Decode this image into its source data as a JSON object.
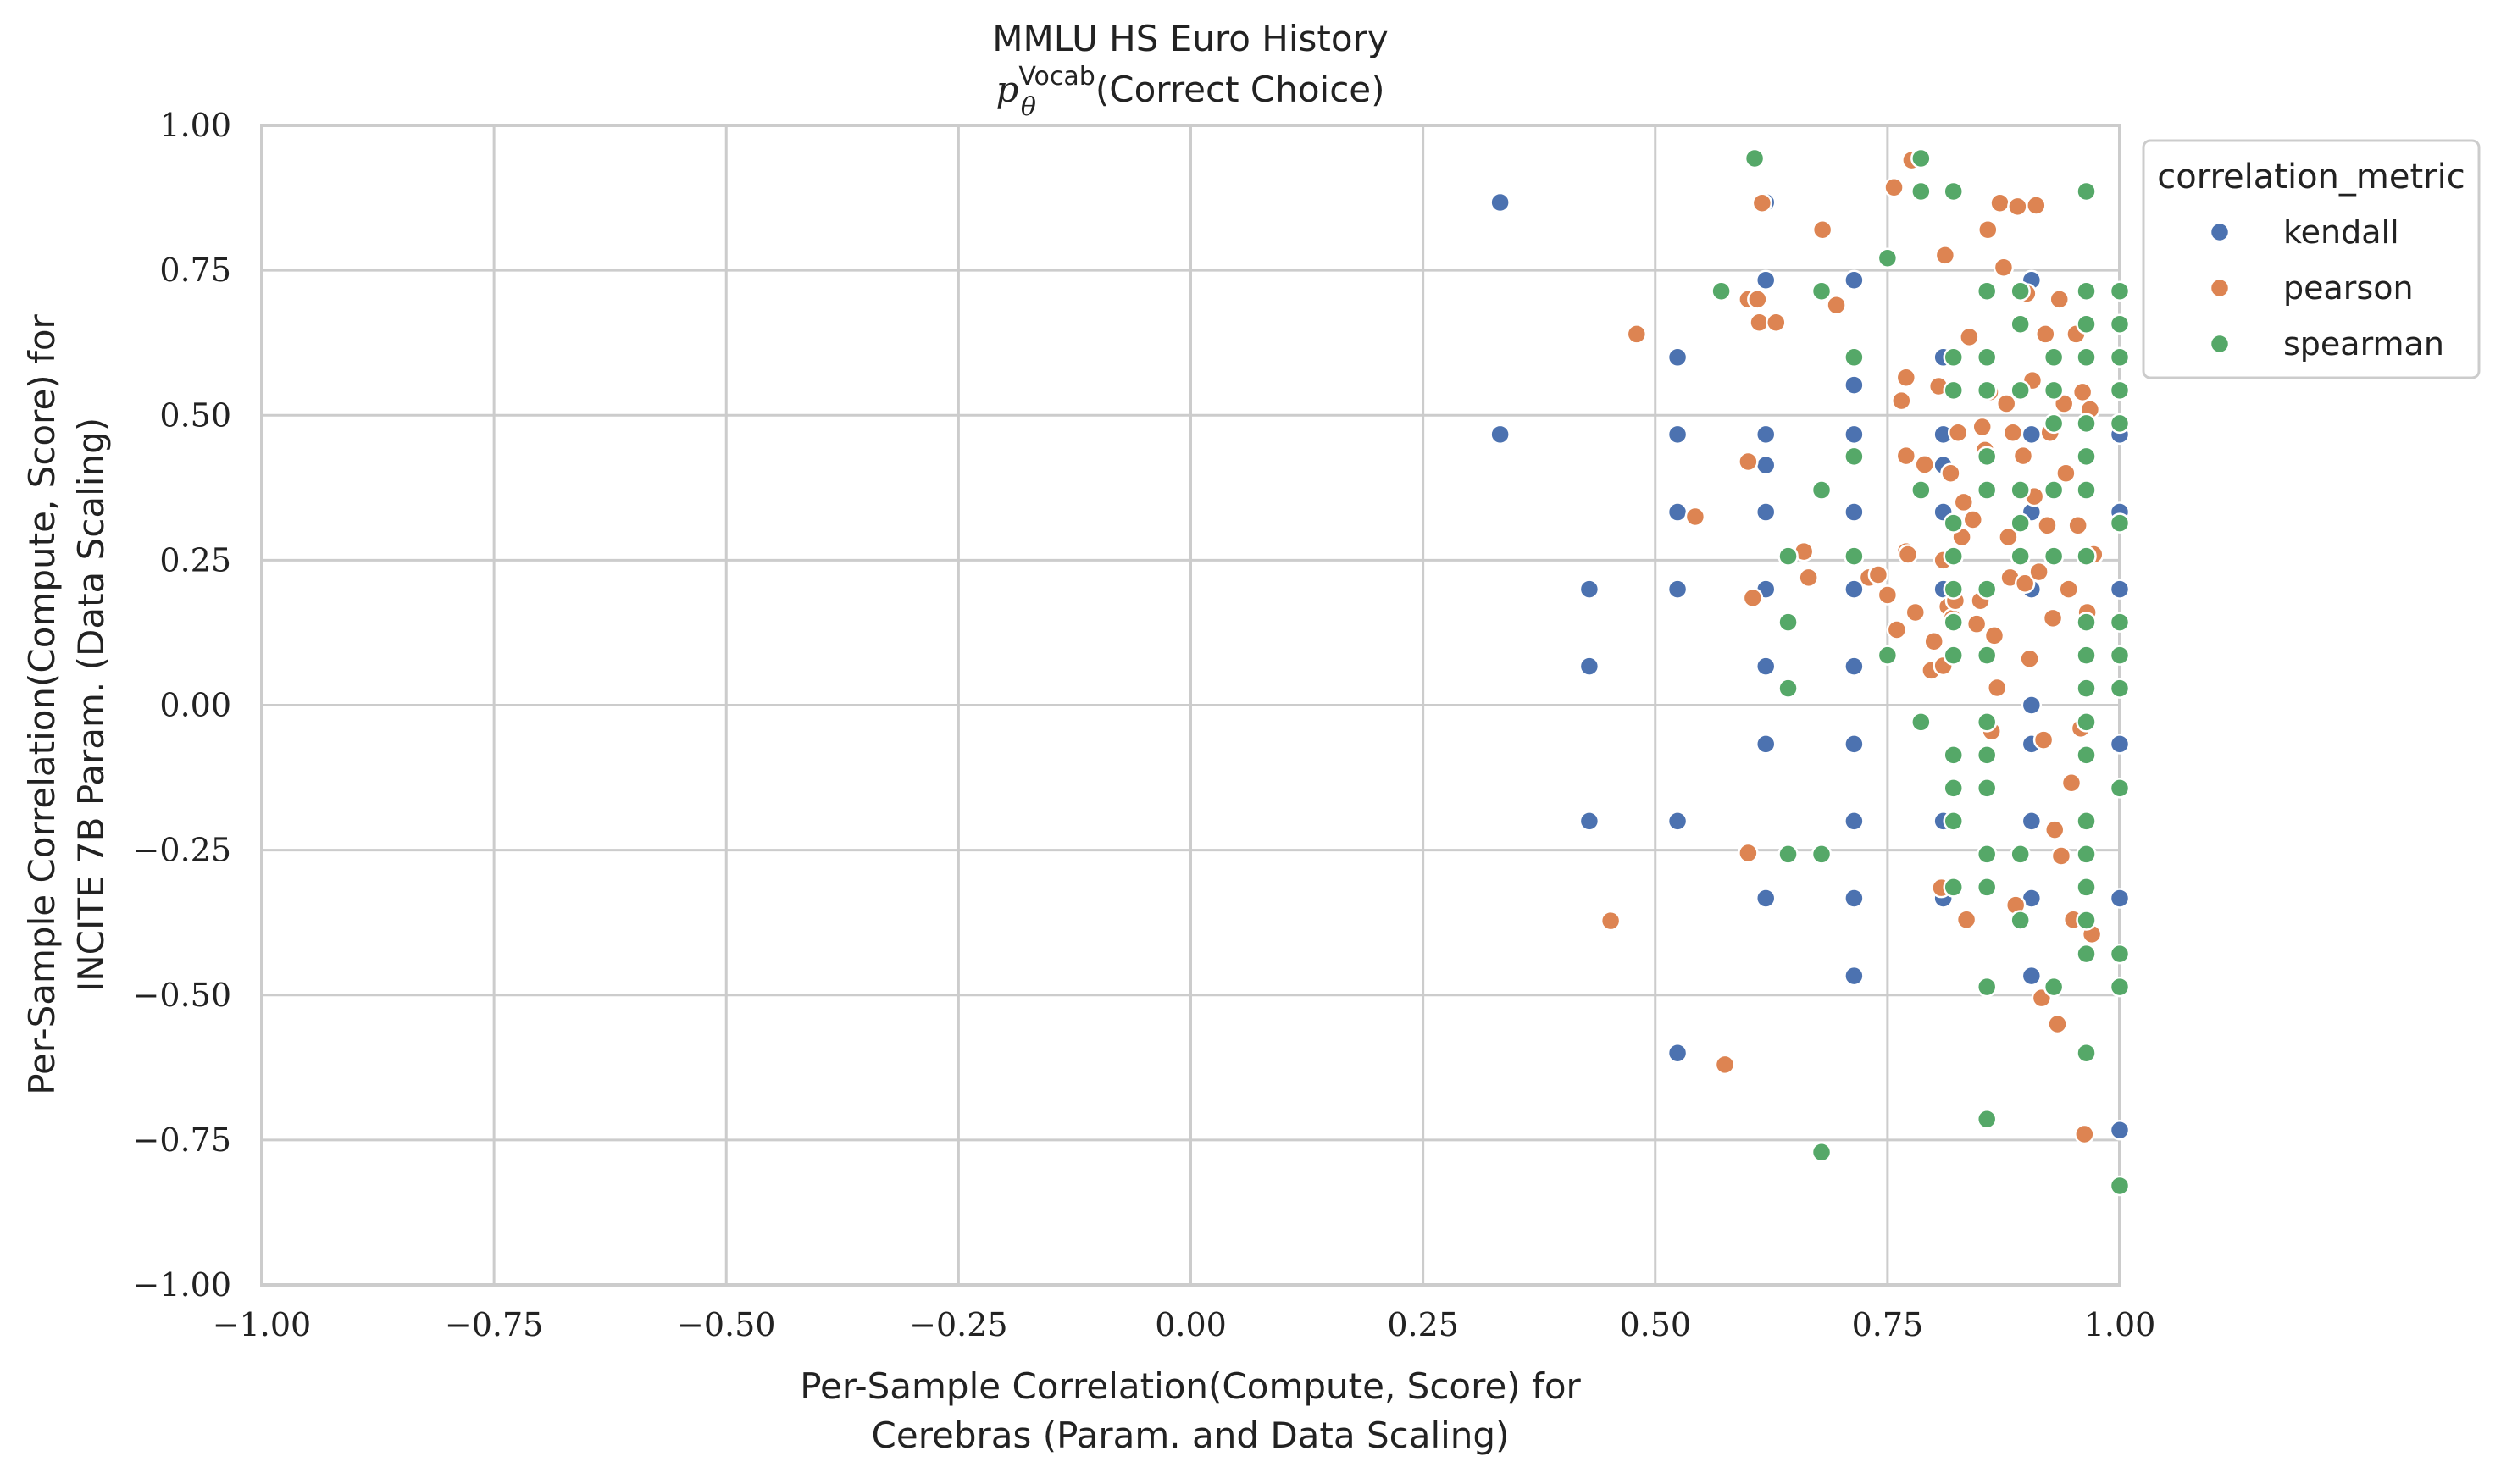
{
  "chart_data": {
    "type": "scatter",
    "title_line1": "MMLU HS Euro History",
    "title_line2_prefix": "p",
    "title_line2_sub": "θ",
    "title_line2_sup": "Vocab",
    "title_line2_suffix": "(Correct Choice)",
    "xlabel_line1": "Per-Sample Correlation(Compute, Score) for",
    "xlabel_line2": "Cerebras (Param. and Data Scaling)",
    "ylabel_line1": "Per-Sample Correlation(Compute, Score) for",
    "ylabel_line2": "INCITE 7B Param. (Data Scaling)",
    "xlim": [
      -1.0,
      1.0
    ],
    "ylim": [
      -1.0,
      1.0
    ],
    "xticks": [
      "−1.00",
      "−0.75",
      "−0.50",
      "−0.25",
      "0.00",
      "0.25",
      "0.50",
      "0.75",
      "1.00"
    ],
    "yticks": [
      "−1.00",
      "−0.75",
      "−0.50",
      "−0.25",
      "0.00",
      "0.25",
      "0.50",
      "0.75",
      "1.00"
    ],
    "grid": true,
    "legend": {
      "title": "correlation_metric",
      "placement": "upper right, outside"
    },
    "series": [
      {
        "name": "kendall",
        "color": "#4c72b0",
        "points": [
          [
            0.333,
            0.867
          ],
          [
            0.333,
            0.467
          ],
          [
            0.429,
            0.2
          ],
          [
            0.429,
            0.067
          ],
          [
            0.429,
            -0.2
          ],
          [
            0.524,
            0.6
          ],
          [
            0.524,
            0.467
          ],
          [
            0.524,
            0.333
          ],
          [
            0.524,
            0.2
          ],
          [
            0.524,
            -0.2
          ],
          [
            0.524,
            -0.6
          ],
          [
            0.619,
            0.867
          ],
          [
            0.619,
            0.733
          ],
          [
            0.619,
            0.467
          ],
          [
            0.619,
            0.414
          ],
          [
            0.619,
            0.333
          ],
          [
            0.619,
            0.2
          ],
          [
            0.619,
            0.067
          ],
          [
            0.619,
            -0.067
          ],
          [
            0.619,
            -0.333
          ],
          [
            0.714,
            0.733
          ],
          [
            0.714,
            0.552
          ],
          [
            0.714,
            0.467
          ],
          [
            0.714,
            0.333
          ],
          [
            0.714,
            0.2
          ],
          [
            0.714,
            0.067
          ],
          [
            0.714,
            -0.067
          ],
          [
            0.714,
            -0.2
          ],
          [
            0.714,
            -0.333
          ],
          [
            0.714,
            -0.467
          ],
          [
            0.81,
            0.6
          ],
          [
            0.81,
            0.467
          ],
          [
            0.81,
            0.414
          ],
          [
            0.81,
            0.333
          ],
          [
            0.81,
            0.2
          ],
          [
            0.81,
            0.067
          ],
          [
            0.81,
            -0.2
          ],
          [
            0.81,
            -0.333
          ],
          [
            0.905,
            0.733
          ],
          [
            0.905,
            0.467
          ],
          [
            0.905,
            0.333
          ],
          [
            0.905,
            0.2
          ],
          [
            0.905,
            0.0
          ],
          [
            0.905,
            -0.067
          ],
          [
            0.905,
            -0.2
          ],
          [
            0.905,
            -0.333
          ],
          [
            0.905,
            -0.467
          ],
          [
            1.0,
            0.467
          ],
          [
            1.0,
            0.333
          ],
          [
            1.0,
            0.2
          ],
          [
            1.0,
            -0.067
          ],
          [
            1.0,
            -0.333
          ],
          [
            1.0,
            -0.733
          ]
        ]
      },
      {
        "name": "pearson",
        "color": "#dd8452",
        "points": [
          [
            0.48,
            0.64
          ],
          [
            0.452,
            -0.372
          ],
          [
            0.543,
            0.325
          ],
          [
            0.575,
            -0.62
          ],
          [
            0.6,
            0.7
          ],
          [
            0.6,
            0.42
          ],
          [
            0.6,
            -0.255
          ],
          [
            0.605,
            0.185
          ],
          [
            0.61,
            0.7
          ],
          [
            0.612,
            0.66
          ],
          [
            0.615,
            0.866
          ],
          [
            0.63,
            0.66
          ],
          [
            0.66,
            0.265
          ],
          [
            0.665,
            0.22
          ],
          [
            0.68,
            0.82
          ],
          [
            0.695,
            0.69
          ],
          [
            0.73,
            0.22
          ],
          [
            0.74,
            0.225
          ],
          [
            0.75,
            0.19
          ],
          [
            0.757,
            0.893
          ],
          [
            0.76,
            0.13
          ],
          [
            0.765,
            0.525
          ],
          [
            0.77,
            0.565
          ],
          [
            0.77,
            0.43
          ],
          [
            0.77,
            0.265
          ],
          [
            0.772,
            0.26
          ],
          [
            0.776,
            0.94
          ],
          [
            0.78,
            0.16
          ],
          [
            0.79,
            0.415
          ],
          [
            0.797,
            0.06
          ],
          [
            0.8,
            0.11
          ],
          [
            0.805,
            0.55
          ],
          [
            0.808,
            -0.315
          ],
          [
            0.81,
            0.25
          ],
          [
            0.81,
            0.068
          ],
          [
            0.812,
            0.776
          ],
          [
            0.815,
            0.17
          ],
          [
            0.818,
            0.4
          ],
          [
            0.82,
            0.15
          ],
          [
            0.823,
            0.18
          ],
          [
            0.826,
            0.47
          ],
          [
            0.83,
            0.29
          ],
          [
            0.832,
            0.35
          ],
          [
            0.835,
            -0.37
          ],
          [
            0.838,
            0.635
          ],
          [
            0.842,
            0.32
          ],
          [
            0.846,
            0.14
          ],
          [
            0.85,
            0.18
          ],
          [
            0.852,
            0.48
          ],
          [
            0.855,
            0.44
          ],
          [
            0.858,
            0.82
          ],
          [
            0.86,
            0.54
          ],
          [
            0.862,
            -0.045
          ],
          [
            0.865,
            0.12
          ],
          [
            0.868,
            0.03
          ],
          [
            0.871,
            0.866
          ],
          [
            0.875,
            0.755
          ],
          [
            0.878,
            0.52
          ],
          [
            0.88,
            0.29
          ],
          [
            0.882,
            0.22
          ],
          [
            0.885,
            0.47
          ],
          [
            0.888,
            -0.345
          ],
          [
            0.89,
            0.86
          ],
          [
            0.894,
            0.54
          ],
          [
            0.896,
            0.43
          ],
          [
            0.898,
            0.21
          ],
          [
            0.9,
            0.71
          ],
          [
            0.903,
            0.08
          ],
          [
            0.906,
            0.56
          ],
          [
            0.908,
            0.36
          ],
          [
            0.91,
            0.862
          ],
          [
            0.913,
            0.23
          ],
          [
            0.916,
            -0.505
          ],
          [
            0.918,
            -0.06
          ],
          [
            0.92,
            0.64
          ],
          [
            0.922,
            0.31
          ],
          [
            0.925,
            0.47
          ],
          [
            0.928,
            0.15
          ],
          [
            0.93,
            -0.215
          ],
          [
            0.933,
            -0.55
          ],
          [
            0.935,
            0.7
          ],
          [
            0.937,
            -0.26
          ],
          [
            0.94,
            0.52
          ],
          [
            0.942,
            0.4
          ],
          [
            0.945,
            0.2
          ],
          [
            0.948,
            -0.134
          ],
          [
            0.95,
            -0.37
          ],
          [
            0.953,
            0.64
          ],
          [
            0.955,
            0.31
          ],
          [
            0.958,
            -0.04
          ],
          [
            0.96,
            0.54
          ],
          [
            0.962,
            -0.74
          ],
          [
            0.965,
            0.16
          ],
          [
            0.968,
            0.51
          ],
          [
            0.97,
            -0.395
          ],
          [
            0.972,
            0.26
          ]
        ]
      },
      {
        "name": "spearman",
        "color": "#55a868",
        "points": [
          [
            0.607,
            0.943
          ],
          [
            0.571,
            0.714
          ],
          [
            0.643,
            0.257
          ],
          [
            0.643,
            0.143
          ],
          [
            0.643,
            0.029
          ],
          [
            0.643,
            -0.257
          ],
          [
            0.679,
            0.714
          ],
          [
            0.679,
            0.371
          ],
          [
            0.679,
            -0.257
          ],
          [
            0.679,
            -0.771
          ],
          [
            0.714,
            0.6
          ],
          [
            0.714,
            0.429
          ],
          [
            0.714,
            0.257
          ],
          [
            0.75,
            0.771
          ],
          [
            0.75,
            0.086
          ],
          [
            0.786,
            0.943
          ],
          [
            0.786,
            0.886
          ],
          [
            0.786,
            0.371
          ],
          [
            0.786,
            -0.029
          ],
          [
            0.821,
            0.886
          ],
          [
            0.821,
            0.6
          ],
          [
            0.821,
            0.543
          ],
          [
            0.821,
            0.314
          ],
          [
            0.821,
            0.257
          ],
          [
            0.821,
            0.2
          ],
          [
            0.821,
            0.143
          ],
          [
            0.821,
            0.086
          ],
          [
            0.821,
            -0.086
          ],
          [
            0.821,
            -0.143
          ],
          [
            0.821,
            -0.2
          ],
          [
            0.821,
            -0.314
          ],
          [
            0.857,
            0.714
          ],
          [
            0.857,
            0.6
          ],
          [
            0.857,
            0.543
          ],
          [
            0.857,
            0.429
          ],
          [
            0.857,
            0.371
          ],
          [
            0.857,
            0.2
          ],
          [
            0.857,
            0.086
          ],
          [
            0.857,
            -0.029
          ],
          [
            0.857,
            -0.086
          ],
          [
            0.857,
            -0.143
          ],
          [
            0.857,
            -0.257
          ],
          [
            0.857,
            -0.314
          ],
          [
            0.857,
            -0.486
          ],
          [
            0.857,
            -0.714
          ],
          [
            0.893,
            0.714
          ],
          [
            0.893,
            0.657
          ],
          [
            0.893,
            0.543
          ],
          [
            0.893,
            0.371
          ],
          [
            0.893,
            0.314
          ],
          [
            0.893,
            0.257
          ],
          [
            0.893,
            -0.257
          ],
          [
            0.893,
            -0.371
          ],
          [
            0.929,
            0.6
          ],
          [
            0.929,
            0.543
          ],
          [
            0.929,
            0.486
          ],
          [
            0.929,
            0.371
          ],
          [
            0.929,
            0.257
          ],
          [
            0.929,
            -0.486
          ],
          [
            0.964,
            0.886
          ],
          [
            0.964,
            0.714
          ],
          [
            0.964,
            0.657
          ],
          [
            0.964,
            0.6
          ],
          [
            0.964,
            0.486
          ],
          [
            0.964,
            0.429
          ],
          [
            0.964,
            0.371
          ],
          [
            0.964,
            0.257
          ],
          [
            0.964,
            0.143
          ],
          [
            0.964,
            0.086
          ],
          [
            0.964,
            0.029
          ],
          [
            0.964,
            -0.029
          ],
          [
            0.964,
            -0.086
          ],
          [
            0.964,
            -0.2
          ],
          [
            0.964,
            -0.257
          ],
          [
            0.964,
            -0.314
          ],
          [
            0.964,
            -0.371
          ],
          [
            0.964,
            -0.429
          ],
          [
            0.964,
            -0.6
          ],
          [
            1.0,
            0.714
          ],
          [
            1.0,
            0.657
          ],
          [
            1.0,
            0.6
          ],
          [
            1.0,
            0.543
          ],
          [
            1.0,
            0.486
          ],
          [
            1.0,
            0.314
          ],
          [
            1.0,
            0.143
          ],
          [
            1.0,
            0.086
          ],
          [
            1.0,
            0.029
          ],
          [
            1.0,
            -0.143
          ],
          [
            1.0,
            -0.429
          ],
          [
            1.0,
            -0.486
          ],
          [
            1.0,
            -0.829
          ]
        ]
      }
    ]
  }
}
